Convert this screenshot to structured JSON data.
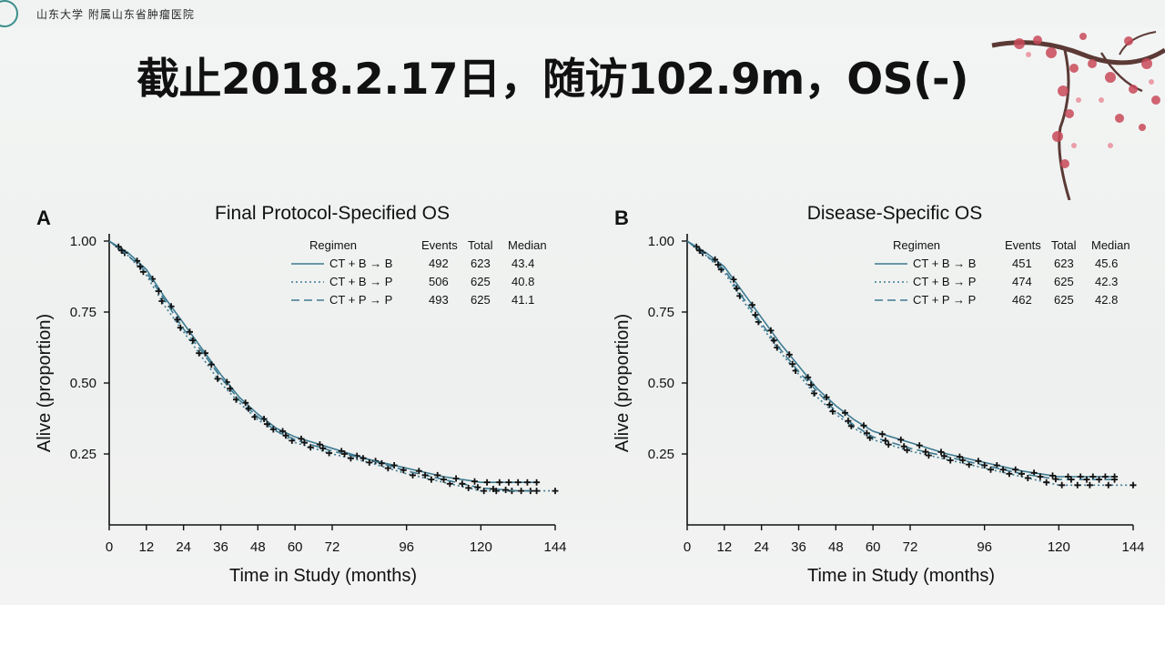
{
  "header": {
    "logo_text": "山东大学 附属山东省肿瘤医院",
    "title": "截止2018.2.17日，随访102.9m，OS(-)"
  },
  "legend_headers": [
    "Regimen",
    "Events",
    "Total",
    "Median"
  ],
  "colors": {
    "line": "#3d7a91",
    "censor": "#111111"
  },
  "chart_data": [
    {
      "type": "line",
      "panel_letter": "A",
      "title": "Final Protocol-Specified OS",
      "xlabel": "Time in Study (months)",
      "ylabel": "Alive (proportion)",
      "xlim": [
        0,
        144
      ],
      "ylim": [
        0,
        1
      ],
      "x_ticks": [
        "0",
        "12",
        "24",
        "36",
        "48",
        "60",
        "72",
        "96",
        "120",
        "144"
      ],
      "y_ticks": [
        "0.25",
        "0.50",
        "0.75",
        "1.00"
      ],
      "legend_placement": "top-right",
      "series": [
        {
          "name": "CT + B → B",
          "events": "492",
          "total": "623",
          "median": "43.4",
          "style": "solid",
          "x": [
            0,
            6,
            12,
            18,
            24,
            30,
            36,
            42,
            48,
            54,
            60,
            66,
            72,
            84,
            96,
            108,
            120,
            132,
            138
          ],
          "y": [
            1.0,
            0.96,
            0.9,
            0.8,
            0.71,
            0.62,
            0.53,
            0.45,
            0.39,
            0.34,
            0.31,
            0.29,
            0.27,
            0.23,
            0.2,
            0.17,
            0.15,
            0.15,
            0.15
          ],
          "censor_x": [
            3,
            9,
            14,
            20,
            26,
            31,
            38,
            44,
            50,
            56,
            62,
            68,
            75,
            80,
            86,
            92,
            100,
            106,
            112,
            118,
            122,
            126,
            129,
            132,
            135,
            138
          ]
        },
        {
          "name": "CT + B → P",
          "events": "506",
          "total": "625",
          "median": "40.8",
          "style": "dotted",
          "x": [
            0,
            6,
            12,
            18,
            24,
            30,
            36,
            42,
            48,
            54,
            60,
            66,
            72,
            84,
            96,
            108,
            120,
            132,
            144
          ],
          "y": [
            1.0,
            0.95,
            0.88,
            0.77,
            0.68,
            0.59,
            0.5,
            0.43,
            0.37,
            0.33,
            0.29,
            0.27,
            0.25,
            0.22,
            0.18,
            0.15,
            0.12,
            0.12,
            0.12
          ],
          "censor_x": [
            5,
            11,
            17,
            23,
            29,
            35,
            41,
            47,
            53,
            59,
            65,
            71,
            78,
            84,
            90,
            98,
            104,
            110,
            116,
            121,
            125,
            130,
            136,
            144
          ]
        },
        {
          "name": "CT + P → P",
          "events": "493",
          "total": "625",
          "median": "41.1",
          "style": "dashed",
          "x": [
            0,
            6,
            12,
            18,
            24,
            30,
            36,
            42,
            48,
            54,
            60,
            66,
            72,
            84,
            96,
            108,
            120,
            132,
            138
          ],
          "y": [
            1.0,
            0.95,
            0.89,
            0.79,
            0.69,
            0.61,
            0.52,
            0.44,
            0.38,
            0.33,
            0.3,
            0.28,
            0.26,
            0.23,
            0.19,
            0.16,
            0.13,
            0.12,
            0.12
          ],
          "censor_x": [
            4,
            10,
            16,
            22,
            27,
            33,
            39,
            45,
            51,
            57,
            63,
            69,
            76,
            82,
            88,
            95,
            102,
            108,
            114,
            119,
            124,
            128,
            133,
            138
          ]
        }
      ]
    },
    {
      "type": "line",
      "panel_letter": "B",
      "title": "Disease-Specific OS",
      "xlabel": "Time in Study (months)",
      "ylabel": "Alive (proportion)",
      "xlim": [
        0,
        144
      ],
      "ylim": [
        0,
        1
      ],
      "x_ticks": [
        "0",
        "12",
        "24",
        "36",
        "48",
        "60",
        "72",
        "96",
        "120",
        "144"
      ],
      "y_ticks": [
        "0.25",
        "0.50",
        "0.75",
        "1.00"
      ],
      "legend_placement": "top-right",
      "series": [
        {
          "name": "CT + B → B",
          "events": "451",
          "total": "623",
          "median": "45.6",
          "style": "solid",
          "x": [
            0,
            6,
            12,
            18,
            24,
            30,
            36,
            42,
            48,
            54,
            60,
            66,
            72,
            84,
            96,
            108,
            120,
            132,
            138
          ],
          "y": [
            1.0,
            0.96,
            0.91,
            0.82,
            0.73,
            0.64,
            0.56,
            0.48,
            0.42,
            0.37,
            0.33,
            0.31,
            0.29,
            0.25,
            0.22,
            0.19,
            0.17,
            0.17,
            0.17
          ],
          "censor_x": [
            3,
            9,
            15,
            21,
            27,
            33,
            39,
            45,
            51,
            57,
            63,
            69,
            75,
            82,
            88,
            94,
            100,
            106,
            112,
            118,
            123,
            127,
            131,
            135,
            138
          ]
        },
        {
          "name": "CT + B → P",
          "events": "474",
          "total": "625",
          "median": "42.3",
          "style": "dotted",
          "x": [
            0,
            6,
            12,
            18,
            24,
            30,
            36,
            42,
            48,
            54,
            60,
            66,
            72,
            84,
            96,
            108,
            120,
            132,
            144
          ],
          "y": [
            1.0,
            0.95,
            0.89,
            0.79,
            0.7,
            0.61,
            0.53,
            0.45,
            0.39,
            0.34,
            0.3,
            0.28,
            0.26,
            0.23,
            0.2,
            0.17,
            0.14,
            0.14,
            0.14
          ],
          "censor_x": [
            5,
            11,
            17,
            23,
            29,
            35,
            41,
            47,
            53,
            59,
            65,
            71,
            78,
            85,
            91,
            98,
            104,
            110,
            116,
            121,
            126,
            130,
            136,
            144
          ]
        },
        {
          "name": "CT + P → P",
          "events": "462",
          "total": "625",
          "median": "42.8",
          "style": "dashed",
          "x": [
            0,
            6,
            12,
            18,
            24,
            30,
            36,
            42,
            48,
            54,
            60,
            66,
            72,
            84,
            96,
            108,
            120,
            132,
            138
          ],
          "y": [
            1.0,
            0.95,
            0.9,
            0.8,
            0.71,
            0.62,
            0.54,
            0.47,
            0.4,
            0.35,
            0.31,
            0.29,
            0.27,
            0.24,
            0.21,
            0.18,
            0.16,
            0.16,
            0.16
          ],
          "censor_x": [
            4,
            10,
            16,
            22,
            28,
            34,
            40,
            46,
            52,
            58,
            64,
            70,
            77,
            83,
            89,
            96,
            102,
            108,
            114,
            119,
            124,
            129,
            133,
            138
          ]
        }
      ]
    }
  ]
}
